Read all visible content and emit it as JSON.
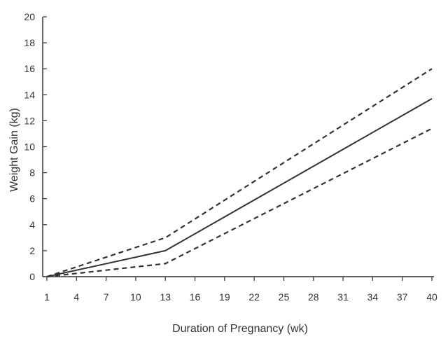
{
  "chart_data": {
    "type": "line",
    "title": "",
    "xlabel": "Duration of Pregnancy (wk)",
    "ylabel": "Weight Gain (kg)",
    "xlim": [
      1,
      40
    ],
    "ylim": [
      0,
      20
    ],
    "x_ticks": [
      1,
      4,
      7,
      10,
      13,
      16,
      19,
      22,
      25,
      28,
      31,
      34,
      37,
      40
    ],
    "y_ticks": [
      0,
      2,
      4,
      6,
      8,
      10,
      12,
      14,
      16,
      18,
      20
    ],
    "grid": false,
    "legend": "none",
    "series": [
      {
        "style": "dashed",
        "x": [
          1,
          13,
          40
        ],
        "y": [
          0,
          3,
          16
        ]
      },
      {
        "style": "solid",
        "x": [
          1,
          13,
          40
        ],
        "y": [
          0,
          2,
          13.7
        ]
      },
      {
        "style": "dashed",
        "x": [
          1,
          13,
          40
        ],
        "y": [
          0,
          1,
          11.4
        ]
      }
    ],
    "colors": {
      "line": "#333333",
      "axis": "#333333",
      "text": "#333333"
    }
  }
}
